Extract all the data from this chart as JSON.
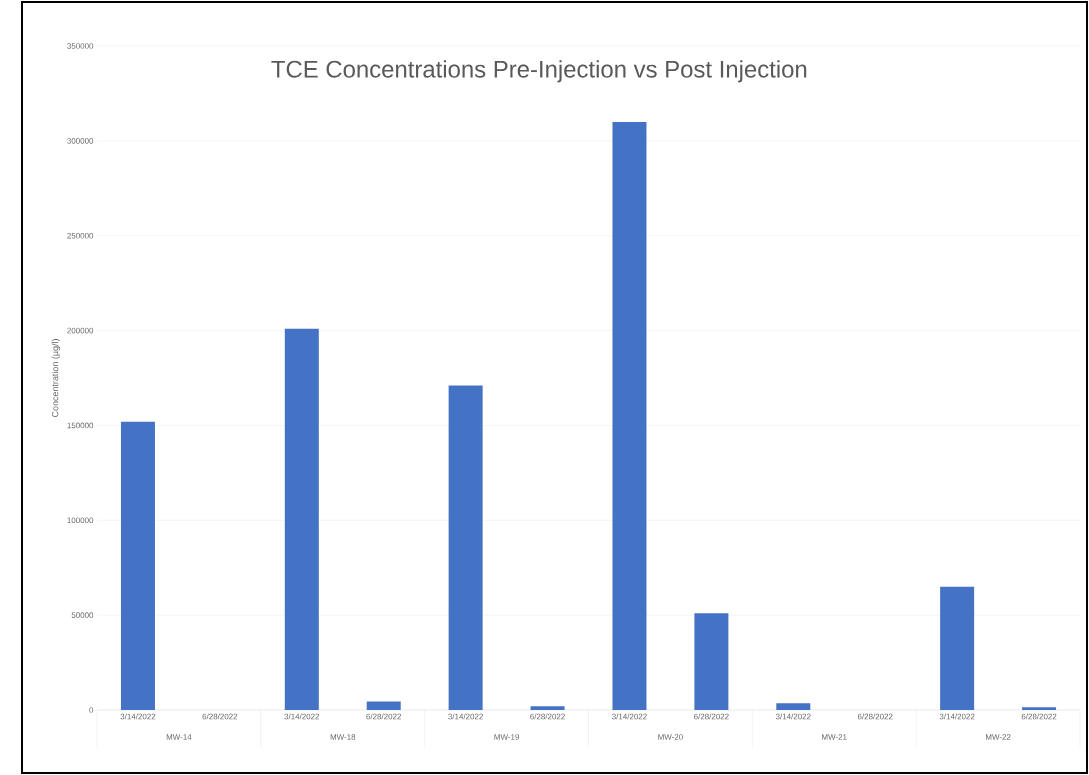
{
  "chart_data": {
    "type": "bar",
    "title": "TCE Concentrations Pre-Injection vs Post Injection",
    "ylabel": "Concentration  (µg/l)",
    "categories": [
      "3/14/2022",
      "6/28/2022",
      "3/14/2022",
      "6/28/2022",
      "3/14/2022",
      "6/28/2022",
      "3/14/2022",
      "6/28/2022",
      "3/14/2022",
      "6/28/2022",
      "3/14/2022",
      "6/28/2022"
    ],
    "values": [
      152000,
      0,
      201000,
      4500,
      171000,
      2000,
      310000,
      51000,
      3500,
      0,
      65000,
      1500
    ],
    "color": "#4472c4",
    "annotations": [
      "MW-14",
      "MW-18",
      "MW-19",
      "MW-20",
      "MW-21",
      "MW-22"
    ],
    "ylim": [
      0,
      350000
    ],
    "yticks": [
      0,
      50000,
      100000,
      150000,
      200000,
      250000,
      300000,
      350000
    ],
    "grid": "y"
  }
}
